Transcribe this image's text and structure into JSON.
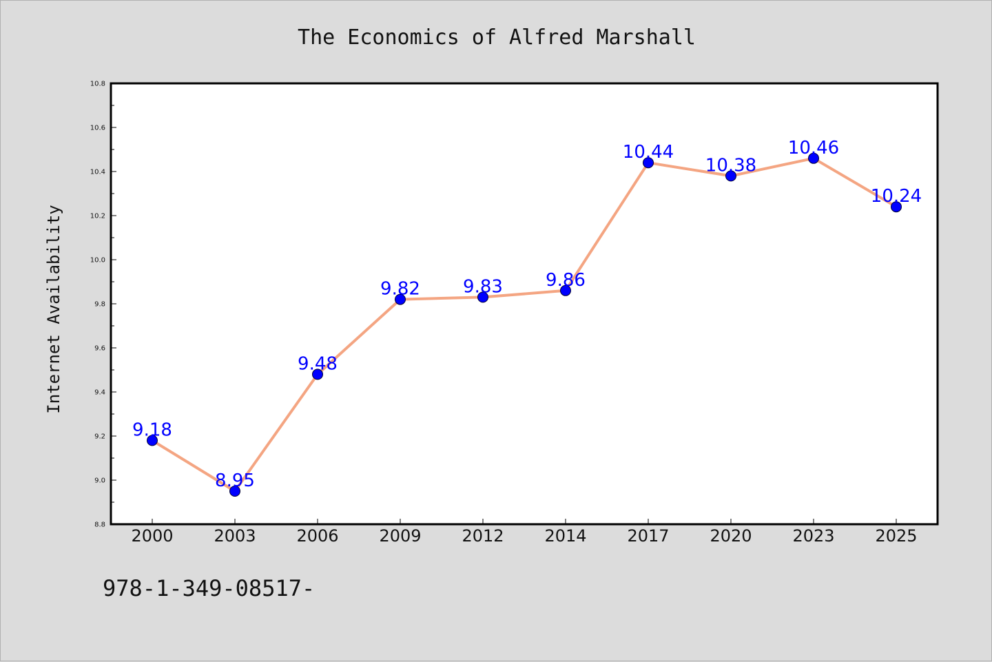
{
  "chart_data": {
    "type": "line",
    "title": "The Economics of Alfred Marshall",
    "xlabel": "",
    "ylabel": "Internet Availability",
    "categories": [
      "2000",
      "2003",
      "2006",
      "2009",
      "2012",
      "2014",
      "2017",
      "2020",
      "2023",
      "2025"
    ],
    "series": [
      {
        "values": [
          9.18,
          8.95,
          9.48,
          9.82,
          9.83,
          9.86,
          10.44,
          10.38,
          10.46,
          10.24
        ],
        "labels": [
          "9.18",
          "8.95",
          "9.48",
          "9.82",
          "9.83",
          "9.86",
          "10.44",
          "10.38",
          "10.46",
          "10.24"
        ]
      }
    ],
    "ylim": [
      8.8,
      10.8
    ],
    "yticks": [
      "8.8",
      "9.0",
      "9.2",
      "9.4",
      "9.6",
      "9.8",
      "10.0",
      "10.2",
      "10.4",
      "10.6",
      "10.8"
    ],
    "grid": false,
    "colors": {
      "line": "#f4a582",
      "marker": "#0000ff",
      "label": "#0000ff",
      "plot_background": "#ffffff",
      "page_background": "#dcdcdc"
    }
  },
  "footer": {
    "text": "978-1-349-08517-"
  }
}
